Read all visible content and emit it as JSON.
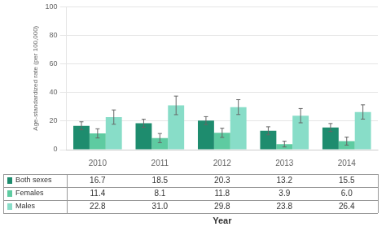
{
  "chart_data": {
    "type": "bar",
    "categories": [
      "2010",
      "2011",
      "2012",
      "2013",
      "2014"
    ],
    "series": [
      {
        "name": "Both sexes",
        "color": "#1e8c6e",
        "values": [
          16.7,
          18.5,
          20.3,
          13.2,
          15.5
        ],
        "errors": [
          2.8,
          2.8,
          2.8,
          2.8,
          2.8
        ],
        "value_labels": [
          "16.7",
          "18.5",
          "20.3",
          "13.2",
          "15.5"
        ]
      },
      {
        "name": "Females",
        "color": "#5ecba1",
        "values": [
          11.4,
          8.1,
          11.8,
          3.9,
          6.0
        ],
        "errors": [
          3.2,
          3.2,
          3.2,
          2.0,
          2.8
        ],
        "value_labels": [
          "11.4",
          "8.1",
          "11.8",
          "3.9",
          "6.0"
        ]
      },
      {
        "name": "Males",
        "color": "#88ddc8",
        "values": [
          22.8,
          31.0,
          29.8,
          23.8,
          26.4
        ],
        "errors": [
          5.0,
          6.5,
          5.2,
          5.0,
          5.0
        ],
        "value_labels": [
          "22.8",
          "31.0",
          "29.8",
          "23.8",
          "26.4"
        ]
      }
    ],
    "ylabel": "Age-standardized rate (per 100,000)",
    "xlabel": "Year",
    "ylim": [
      0,
      100
    ],
    "yticks": [
      0,
      20,
      40,
      60,
      80,
      100
    ],
    "grid": true,
    "data_labels": true
  }
}
